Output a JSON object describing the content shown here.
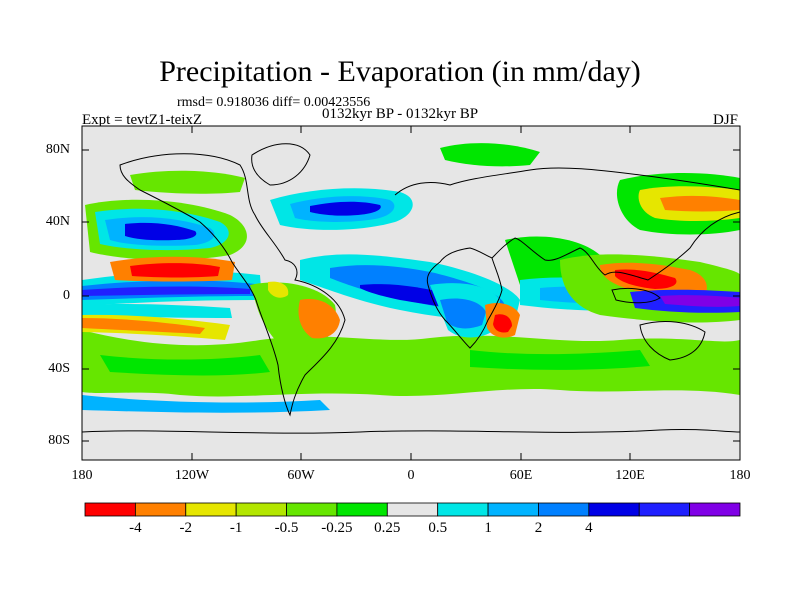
{
  "title": "Precipitation - Evaporation (in mm/day)",
  "stats": "rmsd= 0.918036  diff= 0.00423556",
  "experiment": "Expt = tevtZ1-teixZ",
  "period": "0132kyr BP - 0132kyr BP",
  "season": "DJF",
  "y_ticks": [
    "80N",
    "40N",
    "0",
    "40S",
    "80S"
  ],
  "x_ticks": [
    "180",
    "120W",
    "60W",
    "0",
    "60E",
    "120E",
    "180"
  ],
  "colorbar": {
    "colors": [
      "#ff0000",
      "#ff8000",
      "#e6e600",
      "#b3e600",
      "#66e600",
      "#00e600",
      "#e6e6e6",
      "#00e6e6",
      "#00b3ff",
      "#0080ff",
      "#0000e6",
      "#2020ff",
      "#8000e6"
    ],
    "labels": [
      "-4",
      "-2",
      "-1",
      "-0.5",
      "-0.25",
      "0.25",
      "0.5",
      "1",
      "2",
      "4"
    ]
  }
}
